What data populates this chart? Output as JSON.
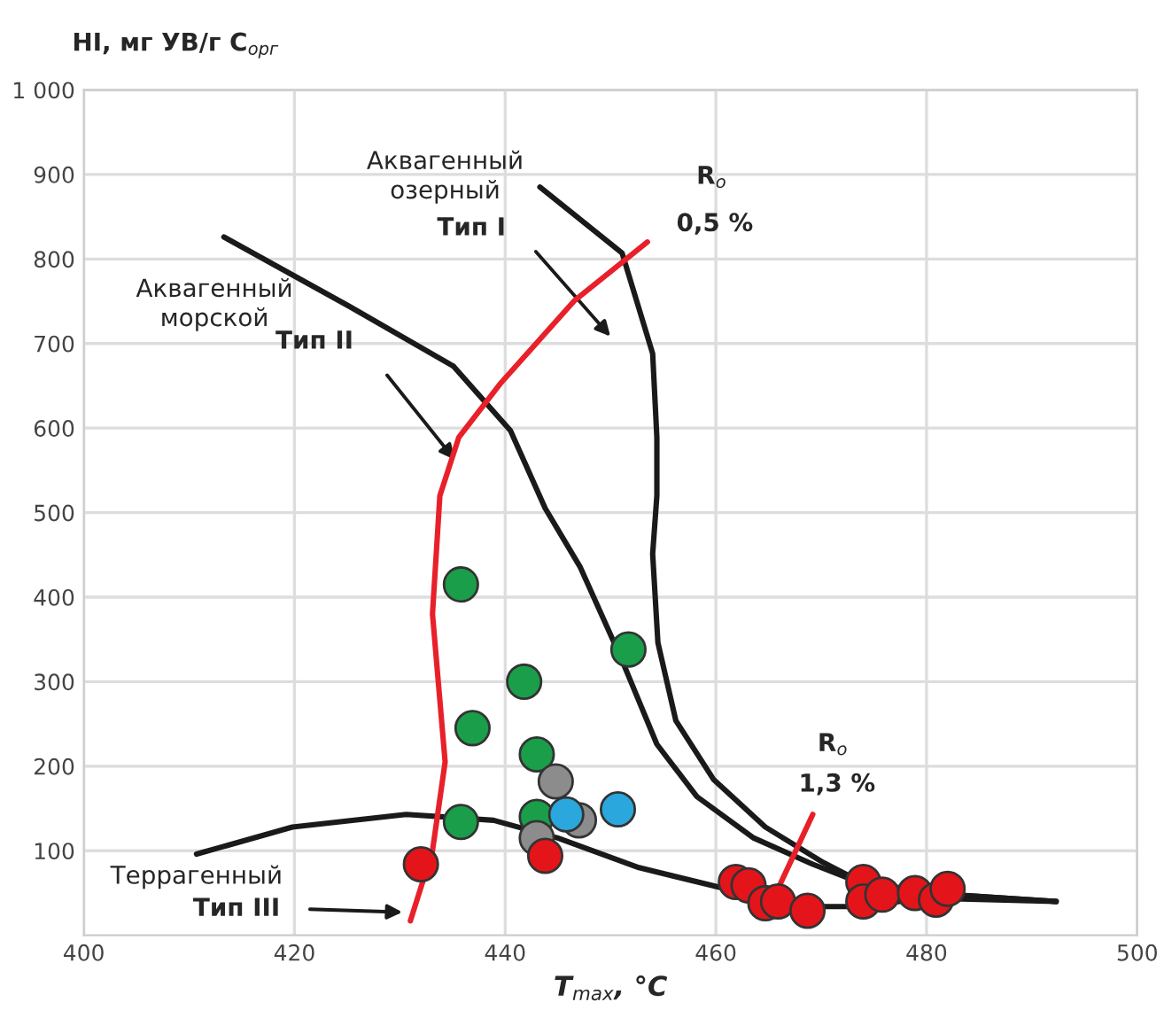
{
  "chart_data": {
    "type": "scatter",
    "xlabel": "T$_{max}$, °C",
    "ylabel": "HI, мг УВ/г C$_{орг}$",
    "xlim": [
      400,
      500
    ],
    "ylim": [
      0,
      1000
    ],
    "xticks": [
      400,
      420,
      440,
      460,
      480,
      500
    ],
    "yticks": [
      100,
      200,
      300,
      400,
      500,
      600,
      700,
      800,
      900,
      {
        "value": 1000,
        "label": "1 000"
      }
    ],
    "grid": true,
    "series": [
      {
        "type": "line",
        "color": "#1a1a1a",
        "x": [
          443.3,
          451.1,
          454.0,
          454.4,
          454.4,
          454.0,
          454.5,
          456.2,
          459.8,
          464.7,
          470.2,
          473.5,
          480.1,
          492.3
        ],
        "values": [
          885,
          807,
          688,
          589,
          520,
          451,
          346,
          254,
          184,
          128,
          86,
          65,
          50,
          40
        ]
      },
      {
        "type": "line",
        "color": "#1a1a1a",
        "x": [
          413.3,
          425.2,
          435.1,
          440.5,
          443.8,
          447.1,
          451.1,
          454.4,
          458.2,
          463.6,
          469.2,
          473.5,
          480.1,
          492.3
        ],
        "values": [
          826,
          744,
          673,
          597,
          505,
          436,
          325,
          226,
          164,
          115,
          84,
          63,
          50,
          40
        ]
      },
      {
        "type": "line",
        "color": "#1a1a1a",
        "x": [
          410.7,
          419.8,
          430.6,
          438.9,
          445.0,
          452.7,
          461.9,
          469.2,
          473.5,
          480.1,
          492.3
        ],
        "values": [
          96,
          128,
          143,
          136,
          115,
          80,
          52,
          34,
          34,
          44,
          40
        ]
      },
      {
        "type": "line",
        "color": "#e8202a",
        "x": [
          431.0,
          433.1,
          434.3,
          433.1,
          433.8,
          435.6,
          439.5,
          446.6,
          453.5
        ],
        "values": [
          17,
          100,
          205,
          380,
          520,
          589,
          652,
          751,
          820
        ]
      },
      {
        "type": "line",
        "color": "#e8202a",
        "x": [
          469.2,
          465.9,
          465.2
        ],
        "values": [
          143,
          55,
          38
        ]
      },
      {
        "marker": "circle",
        "color": "#1a9e4a",
        "x": [
          435.8,
          436.9,
          441.8,
          443.0,
          435.8,
          443.0,
          451.7
        ],
        "values": [
          415,
          245,
          300,
          214,
          134,
          140,
          338
        ]
      },
      {
        "marker": "circle",
        "color": "#8c8c8c",
        "x": [
          444.8,
          443.0,
          447.0
        ],
        "values": [
          182,
          115,
          136
        ]
      },
      {
        "marker": "circle",
        "color": "#2aa7dc",
        "x": [
          445.8,
          450.7
        ],
        "values": [
          143,
          149
        ]
      },
      {
        "marker": "circle",
        "color": "#e3151a",
        "x": [
          432.0,
          443.8,
          461.9,
          463.1,
          464.7,
          465.9,
          468.7,
          474.0,
          474.0,
          475.8,
          478.9,
          480.9,
          482.0
        ],
        "values": [
          84,
          94,
          63,
          59,
          38,
          40,
          29,
          63,
          40,
          48,
          50,
          42,
          55
        ]
      }
    ],
    "annotations": [
      "Аквагенный\nозерный",
      "Тип I",
      "Аквагенный\nморской",
      "Тип II",
      "Террагенный",
      "Тип III",
      "R$_{o}$",
      "0,5 %",
      "R$_{o}$",
      "1,3 %"
    ]
  }
}
